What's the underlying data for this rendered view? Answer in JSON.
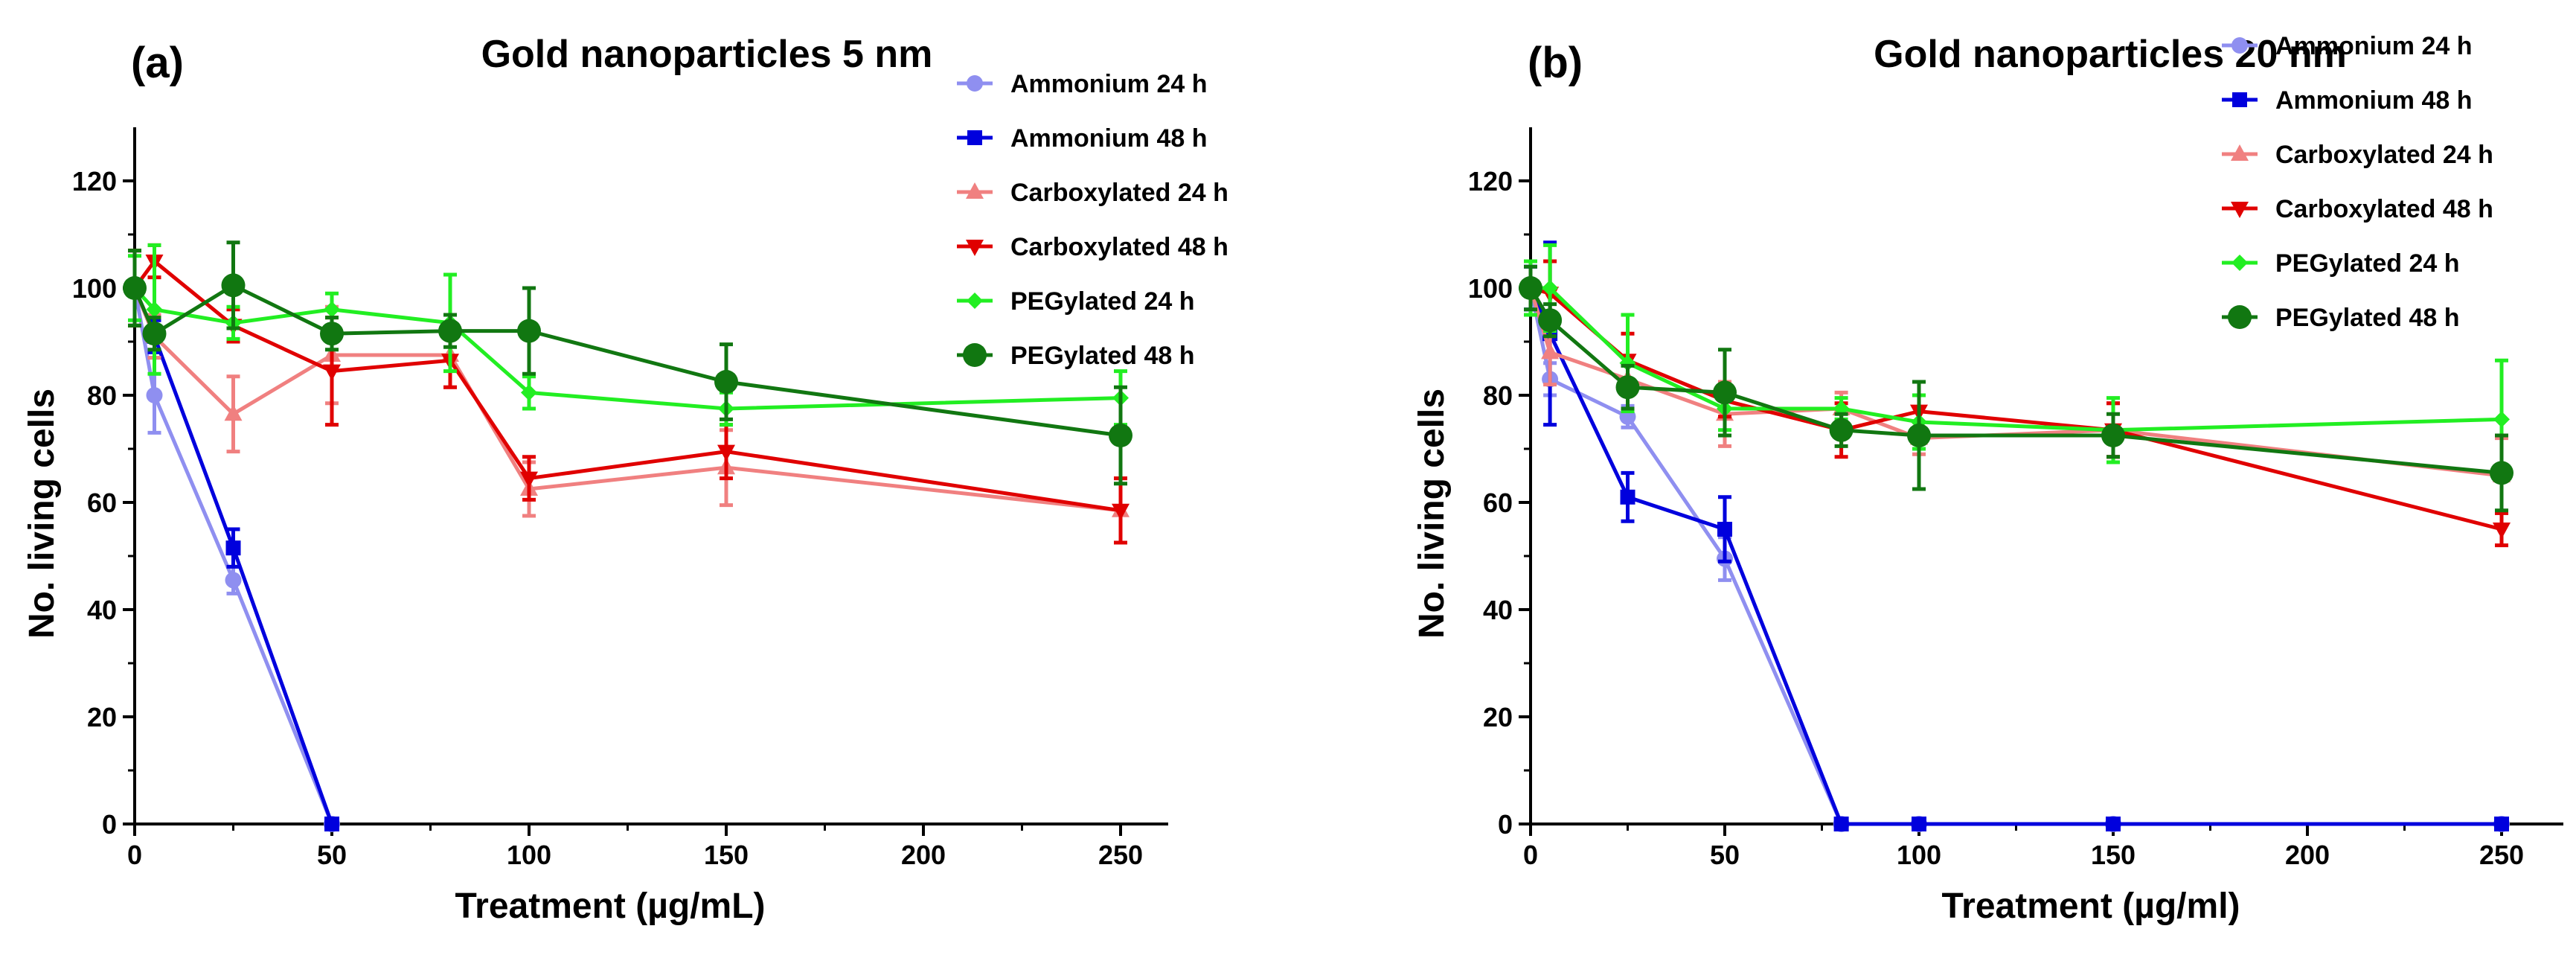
{
  "chart_data": [
    {
      "panel_label": "(a)",
      "type": "line",
      "title": "Gold nanoparticles 5 nm",
      "xlabel": "Treatment (µg/mL)",
      "ylabel": "No. living cells",
      "xlim": [
        0,
        260
      ],
      "ylim": [
        0,
        130
      ],
      "xticks": [
        0,
        50,
        100,
        150,
        200,
        250
      ],
      "yticks": [
        0,
        20,
        40,
        60,
        80,
        100,
        120
      ],
      "series": [
        {
          "name": "Ammonium 24 h",
          "color": "#8f8ff0",
          "marker": "circle",
          "x": [
            0,
            5,
            25,
            50
          ],
          "y": [
            100,
            80,
            45.5,
            0
          ],
          "err": [
            7,
            7,
            2.5,
            0
          ]
        },
        {
          "name": "Ammonium 48 h",
          "color": "#0000dd",
          "marker": "square",
          "x": [
            0,
            5,
            25,
            50
          ],
          "y": [
            100,
            91,
            51.5,
            0
          ],
          "err": [
            7,
            3,
            3.5,
            0
          ]
        },
        {
          "name": "Carboxylated 24 h",
          "color": "#f08080",
          "marker": "triangle-up",
          "x": [
            0,
            5,
            25,
            50,
            80,
            100,
            150,
            250
          ],
          "y": [
            100,
            91,
            76.5,
            87.5,
            87.5,
            62.5,
            66.5,
            58.5
          ],
          "err": [
            7,
            4,
            7,
            9,
            6,
            5,
            7,
            6
          ]
        },
        {
          "name": "Carboxylated 48 h",
          "color": "#e00000",
          "marker": "triangle-down",
          "x": [
            0,
            5,
            25,
            50,
            80,
            100,
            150,
            250
          ],
          "y": [
            100,
            105,
            93,
            84.5,
            86.5,
            64.5,
            69.5,
            58.5
          ],
          "err": [
            7,
            3,
            3,
            10,
            5,
            4,
            5,
            6
          ]
        },
        {
          "name": "PEGylated 24 h",
          "color": "#22ee22",
          "marker": "diamond",
          "x": [
            0,
            5,
            25,
            50,
            80,
            100,
            150,
            250
          ],
          "y": [
            100,
            96,
            93.5,
            96,
            93.5,
            80.5,
            77.5,
            79.5
          ],
          "err": [
            6,
            12,
            3,
            3,
            9,
            3,
            3,
            5
          ]
        },
        {
          "name": "PEGylated 48 h",
          "color": "#117711",
          "marker": "circle-big",
          "x": [
            0,
            5,
            25,
            50,
            80,
            100,
            150,
            250
          ],
          "y": [
            100,
            91.5,
            100.5,
            91.5,
            92,
            92,
            82.5,
            72.5
          ],
          "err": [
            7,
            3,
            8,
            3,
            3,
            8,
            7,
            9
          ]
        }
      ]
    },
    {
      "panel_label": "(b)",
      "type": "line",
      "title": "Gold nanoparticles 20 nm",
      "xlabel": "Treatment (µg/ml)",
      "ylabel": "No. living cells",
      "xlim": [
        0,
        260
      ],
      "ylim": [
        0,
        130
      ],
      "xticks": [
        0,
        50,
        100,
        150,
        200,
        250
      ],
      "yticks": [
        0,
        20,
        40,
        60,
        80,
        100,
        120
      ],
      "series": [
        {
          "name": "Ammonium 24 h",
          "color": "#8f8ff0",
          "marker": "circle",
          "x": [
            0,
            5,
            25,
            50,
            80,
            100,
            150,
            250
          ],
          "y": [
            100,
            83,
            76,
            49.5,
            0,
            0,
            0,
            0
          ],
          "err": [
            4,
            3,
            2,
            4,
            0,
            0,
            0,
            0
          ]
        },
        {
          "name": "Ammonium 48 h",
          "color": "#0000dd",
          "marker": "square",
          "x": [
            0,
            5,
            25,
            50,
            80,
            100,
            150,
            250
          ],
          "y": [
            100,
            91.5,
            61,
            55,
            0,
            0,
            0,
            0
          ],
          "err": [
            4,
            17,
            4.5,
            6,
            0,
            0,
            0,
            0
          ]
        },
        {
          "name": "Carboxylated 24 h",
          "color": "#f08080",
          "marker": "triangle-up",
          "x": [
            0,
            5,
            25,
            50,
            80,
            100,
            150,
            250
          ],
          "y": [
            100,
            88,
            83,
            76.5,
            77.5,
            72,
            73.5,
            65
          ],
          "err": [
            5,
            6,
            3,
            6,
            3,
            3,
            5,
            7
          ]
        },
        {
          "name": "Carboxylated 48 h",
          "color": "#e00000",
          "marker": "triangle-down",
          "x": [
            0,
            5,
            25,
            50,
            80,
            100,
            150,
            250
          ],
          "y": [
            100,
            99,
            86.5,
            79,
            73.5,
            77,
            73.5,
            55
          ],
          "err": [
            5,
            6,
            5,
            3,
            5,
            3,
            5,
            3
          ]
        },
        {
          "name": "PEGylated 24 h",
          "color": "#22ee22",
          "marker": "diamond",
          "x": [
            0,
            5,
            25,
            50,
            80,
            100,
            150,
            250
          ],
          "y": [
            100,
            100,
            86,
            77.5,
            77.5,
            75,
            73.5,
            75.5
          ],
          "err": [
            5,
            8,
            9,
            4,
            2,
            5,
            6,
            11
          ]
        },
        {
          "name": "PEGylated 48 h",
          "color": "#117711",
          "marker": "circle-big",
          "x": [
            0,
            5,
            25,
            50,
            80,
            100,
            150,
            250
          ],
          "y": [
            100,
            94,
            81.5,
            80.5,
            73.5,
            72.5,
            72.5,
            65.5
          ],
          "err": [
            4,
            3,
            4,
            8,
            3,
            10,
            4,
            7
          ]
        }
      ]
    }
  ]
}
